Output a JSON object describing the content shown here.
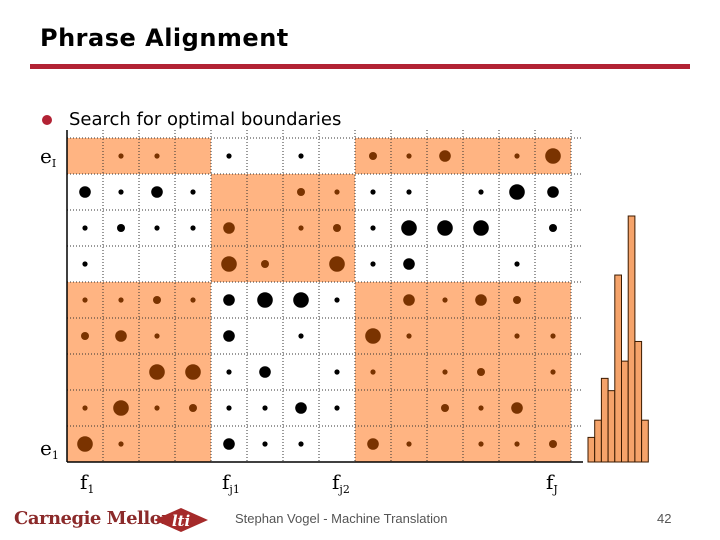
{
  "slide": {
    "title": "Phrase Alignment",
    "bullet": "Search for optimal boundaries",
    "footer": {
      "logo_text": "Carnegie Mellon",
      "lti_logo_text": "lti",
      "presenter": "Stephan Vogel - Machine Translation",
      "page_number": "42"
    }
  },
  "colors": {
    "accent": "#b22234",
    "shade": "#ffb482",
    "dot_shaded": "#7a3300",
    "dot_unshaded": "#000000",
    "histogram": "#f5a36a"
  },
  "axis_labels": {
    "row_top": {
      "base": "e",
      "sub": "I"
    },
    "row_bottom": {
      "base": "e",
      "sub": "1"
    },
    "col_labels": [
      {
        "base": "f",
        "sub": "1"
      },
      {
        "base": "f",
        "sub": "j1"
      },
      {
        "base": "f",
        "sub": "j2"
      },
      {
        "base": "f",
        "sub": "J"
      }
    ]
  },
  "chart_data": {
    "type": "heatmap",
    "description_rows": "top row is e_I, bottom row is e_1",
    "size_scale": "0 none, 1 small, 2 medium, 3 large, 4 extra large",
    "matrix": [
      [
        0,
        1,
        1,
        0,
        1,
        0,
        1,
        0,
        2,
        1,
        3,
        0,
        1,
        4
      ],
      [
        3,
        1,
        3,
        1,
        0,
        0,
        2,
        1,
        1,
        1,
        0,
        1,
        4,
        3
      ],
      [
        1,
        2,
        1,
        1,
        3,
        0,
        1,
        2,
        1,
        4,
        4,
        4,
        0,
        2
      ],
      [
        1,
        0,
        0,
        0,
        4,
        2,
        0,
        4,
        1,
        3,
        0,
        0,
        1,
        0
      ],
      [
        1,
        1,
        2,
        1,
        3,
        4,
        4,
        1,
        0,
        3,
        1,
        3,
        2,
        0
      ],
      [
        2,
        3,
        1,
        0,
        3,
        0,
        1,
        0,
        4,
        1,
        0,
        0,
        1,
        1
      ],
      [
        0,
        0,
        4,
        4,
        1,
        3,
        0,
        1,
        1,
        0,
        1,
        2,
        0,
        1
      ],
      [
        1,
        4,
        1,
        2,
        1,
        1,
        3,
        1,
        0,
        0,
        2,
        1,
        3,
        0
      ],
      [
        4,
        1,
        0,
        0,
        3,
        1,
        1,
        0,
        3,
        1,
        0,
        1,
        1,
        2
      ]
    ],
    "shaded_blocks": [
      {
        "rows": [
          0,
          0
        ],
        "cols": [
          0,
          3
        ]
      },
      {
        "rows": [
          0,
          0
        ],
        "cols": [
          8,
          13
        ]
      },
      {
        "rows": [
          1,
          3
        ],
        "cols": [
          4,
          7
        ]
      },
      {
        "rows": [
          4,
          8
        ],
        "cols": [
          0,
          3
        ]
      },
      {
        "rows": [
          4,
          8
        ],
        "cols": [
          8,
          13
        ]
      }
    ],
    "histogram": {
      "type": "bar",
      "values": [
        1.0,
        1.7,
        3.4,
        2.9,
        7.6,
        4.1,
        10.0,
        4.9,
        1.7
      ]
    }
  }
}
